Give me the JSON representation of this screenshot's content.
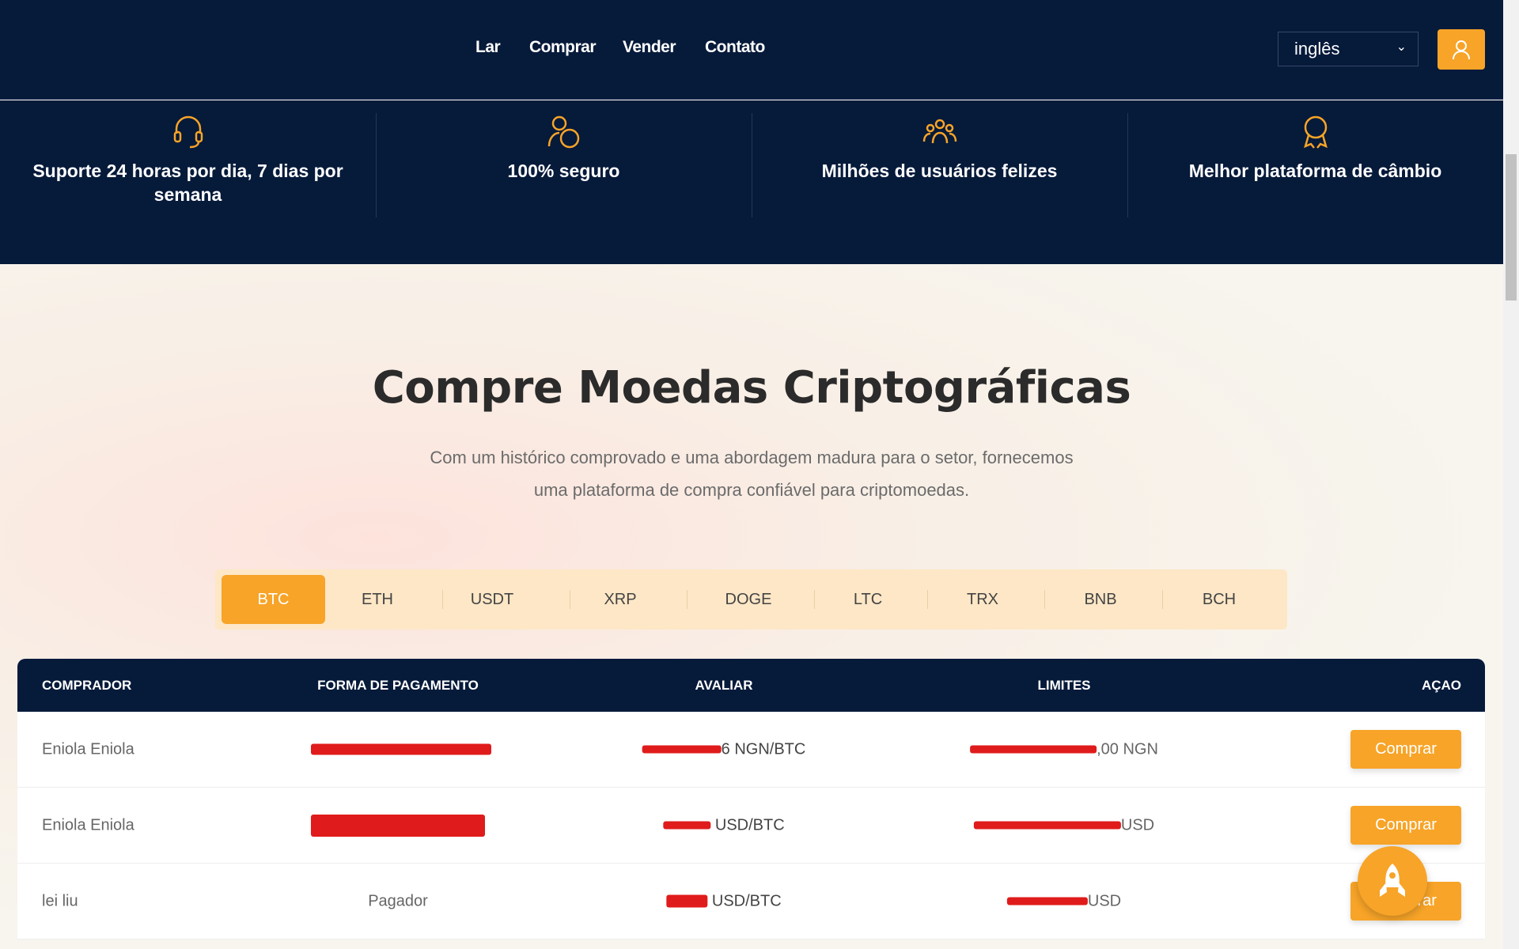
{
  "nav": {
    "links": [
      "Lar",
      "Comprar",
      "Vender",
      "Contato"
    ],
    "language": "inglês"
  },
  "features": [
    {
      "icon": "headset-icon",
      "label": "Suporte 24 horas por dia, 7 dias por semana"
    },
    {
      "icon": "secure-user-icon",
      "label": "100% seguro"
    },
    {
      "icon": "users-group-icon",
      "label": "Milhões de usuários felizes"
    },
    {
      "icon": "award-icon",
      "label": "Melhor plataforma de câmbio"
    }
  ],
  "hero": {
    "title": "Compre Moedas Criptográficas",
    "subtitle_line1": "Com um histórico comprovado e uma abordagem madura para o setor, fornecemos",
    "subtitle_line2": "uma plataforma de compra confiável para criptomoedas."
  },
  "tabs": {
    "items": [
      "BTC",
      "ETH",
      "USDT",
      "XRP",
      "DOGE",
      "LTC",
      "TRX",
      "BNB",
      "BCH"
    ],
    "active": "BTC"
  },
  "table": {
    "headers": [
      "COMPRADOR",
      "FORMA DE PAGAMENTO",
      "AVALIAR",
      "LIMITES",
      "AÇAO"
    ],
    "rows": [
      {
        "buyer": "Eniola Eniola",
        "payment": "",
        "rate_suffix": "6 NGN/BTC",
        "limits_suffix": ",00 NGN",
        "action": "Comprar"
      },
      {
        "buyer": "Eniola Eniola",
        "payment": "",
        "rate_suffix": "USD/BTC",
        "limits_suffix": "USD",
        "action": "Comprar"
      },
      {
        "buyer": "lei liu",
        "payment": "Pagador",
        "rate_suffix": "USD/BTC",
        "limits_suffix": "USD",
        "action": "Comprar"
      }
    ]
  },
  "colors": {
    "navy": "#061a3a",
    "accent": "#f7a428",
    "redaction": "#e01b1b"
  }
}
